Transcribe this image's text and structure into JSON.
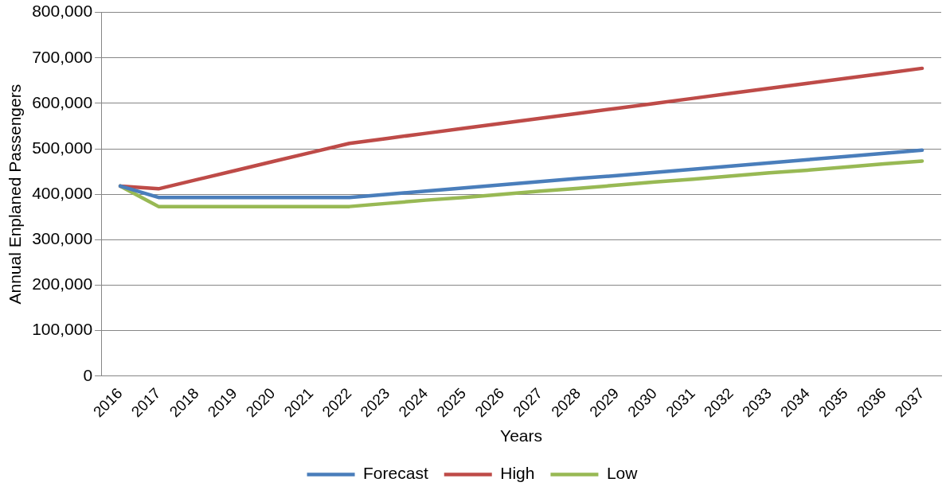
{
  "chart_data": {
    "type": "line",
    "xlabel": "Years",
    "ylabel": "Annual Enplaned Passengers",
    "categories": [
      "2016",
      "2017",
      "2018",
      "2019",
      "2020",
      "2021",
      "2022",
      "2023",
      "2024",
      "2025",
      "2026",
      "2027",
      "2028",
      "2029",
      "2030",
      "2031",
      "2032",
      "2033",
      "2034",
      "2035",
      "2036",
      "2037"
    ],
    "series": [
      {
        "name": "Forecast",
        "color": "#4a7ebb",
        "values": [
          418000,
          393000,
          393000,
          393000,
          393000,
          393000,
          393000,
          400000,
          407000,
          414000,
          421000,
          428000,
          435000,
          441000,
          448000,
          455000,
          462000,
          469000,
          476000,
          483000,
          490000,
          497000
        ]
      },
      {
        "name": "High",
        "color": "#be4b48",
        "values": [
          418000,
          412000,
          432000,
          452000,
          472000,
          492000,
          512000,
          523000,
          534000,
          545000,
          556000,
          567000,
          578000,
          589000,
          600000,
          611000,
          622000,
          633000,
          644000,
          655000,
          666000,
          677000
        ]
      },
      {
        "name": "Low",
        "color": "#98b954",
        "values": [
          418000,
          373000,
          373000,
          373000,
          373000,
          373000,
          373000,
          380000,
          387000,
          393000,
          400000,
          407000,
          413000,
          420000,
          427000,
          433000,
          440000,
          447000,
          453000,
          460000,
          467000,
          473000
        ]
      }
    ],
    "ylim": [
      0,
      800000
    ],
    "yticks": [
      0,
      {
        "value": 100000,
        "label": "100,000"
      },
      {
        "value": 200000,
        "label": "200,000"
      },
      {
        "value": 300000,
        "label": "300,000"
      },
      {
        "value": 400000,
        "label": "400,000"
      },
      {
        "value": 500000,
        "label": "500,000"
      },
      {
        "value": 600000,
        "label": "600,000"
      },
      {
        "value": 700000,
        "label": "700,000"
      },
      {
        "value": 800000,
        "label": "800,000"
      }
    ],
    "grid": "y",
    "legend": "bottom",
    "marker": "none",
    "line_style": "solid"
  }
}
